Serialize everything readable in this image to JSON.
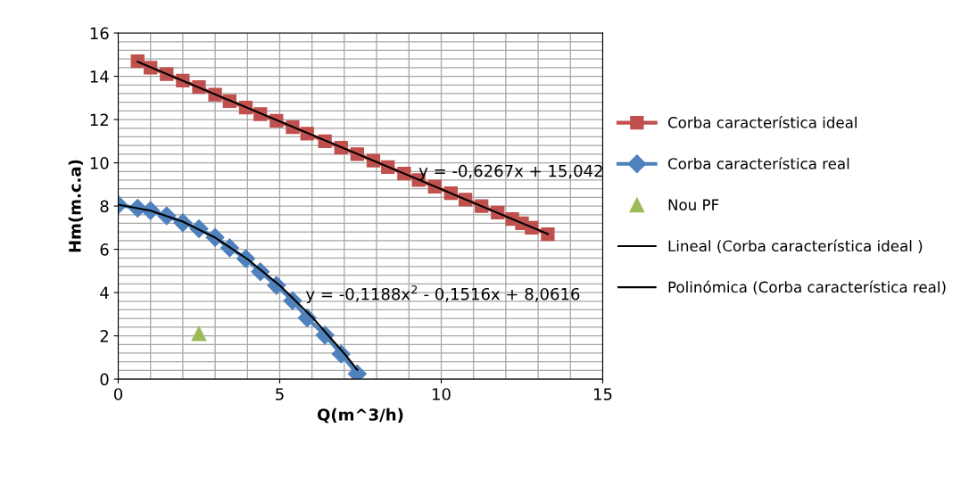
{
  "chart_data": {
    "type": "line",
    "xlabel": "Q(m^3/h)",
    "ylabel": "Hm(m.c.a)",
    "xlim": [
      0,
      15
    ],
    "ylim": [
      0,
      16
    ],
    "xticks": [
      0,
      5,
      10,
      15
    ],
    "yticks": [
      0,
      2,
      4,
      6,
      8,
      10,
      12,
      14,
      16
    ],
    "grid": true,
    "legend": "right",
    "series": [
      {
        "name": "Corba característica ideal",
        "color": "#c0504d",
        "marker": "square",
        "x": [
          0.6,
          1.0,
          1.5,
          2.0,
          2.5,
          3.0,
          3.45,
          3.95,
          4.4,
          4.9,
          5.4,
          5.85,
          6.4,
          6.9,
          7.4,
          7.9,
          8.35,
          8.85,
          9.3,
          9.8,
          10.3,
          10.75,
          11.25,
          11.75,
          12.2,
          12.5,
          12.8,
          13.3
        ],
        "values": [
          14.7,
          14.4,
          14.1,
          13.8,
          13.5,
          13.15,
          12.85,
          12.55,
          12.25,
          11.95,
          11.65,
          11.35,
          11.0,
          10.7,
          10.4,
          10.1,
          9.8,
          9.5,
          9.2,
          8.9,
          8.6,
          8.3,
          8.0,
          7.7,
          7.4,
          7.2,
          7.0,
          6.7
        ]
      },
      {
        "name": "Corba característica real",
        "color": "#4f81bd",
        "marker": "diamond",
        "x": [
          0,
          0.6,
          1.0,
          1.5,
          2.0,
          2.5,
          3.0,
          3.45,
          3.95,
          4.4,
          4.9,
          5.4,
          5.85,
          6.4,
          6.9,
          7.4
        ],
        "values": [
          8.06,
          7.9,
          7.79,
          7.55,
          7.23,
          6.95,
          6.55,
          6.07,
          5.57,
          4.96,
          4.33,
          3.62,
          2.83,
          2.03,
          1.16,
          0.24
        ]
      },
      {
        "name": "Nou PF",
        "color": "#9bbb59",
        "marker": "triangle",
        "type": "scatter",
        "x": [
          2.5
        ],
        "values": [
          2.1
        ]
      },
      {
        "name": "Lineal (Corba característica ideal )",
        "color": "#000000",
        "x": [
          0.6,
          13.3
        ],
        "values": [
          14.67,
          6.71
        ]
      },
      {
        "name": "Polinómica (Corba característica real)",
        "color": "#000000",
        "x": [
          0,
          1,
          2,
          3,
          4,
          5,
          6,
          7,
          7.4
        ],
        "values": [
          8.06,
          7.79,
          7.28,
          6.54,
          5.55,
          4.33,
          2.87,
          1.18,
          0.43
        ]
      }
    ],
    "annotations": [
      {
        "text": "y = -0,6267x + 15,042",
        "x": 9.3,
        "y": 9.2
      },
      {
        "text": "y = -0,1188x$^{2}$ - 0,1516x + 8,0616",
        "x": 5.8,
        "y": 3.5
      }
    ]
  }
}
